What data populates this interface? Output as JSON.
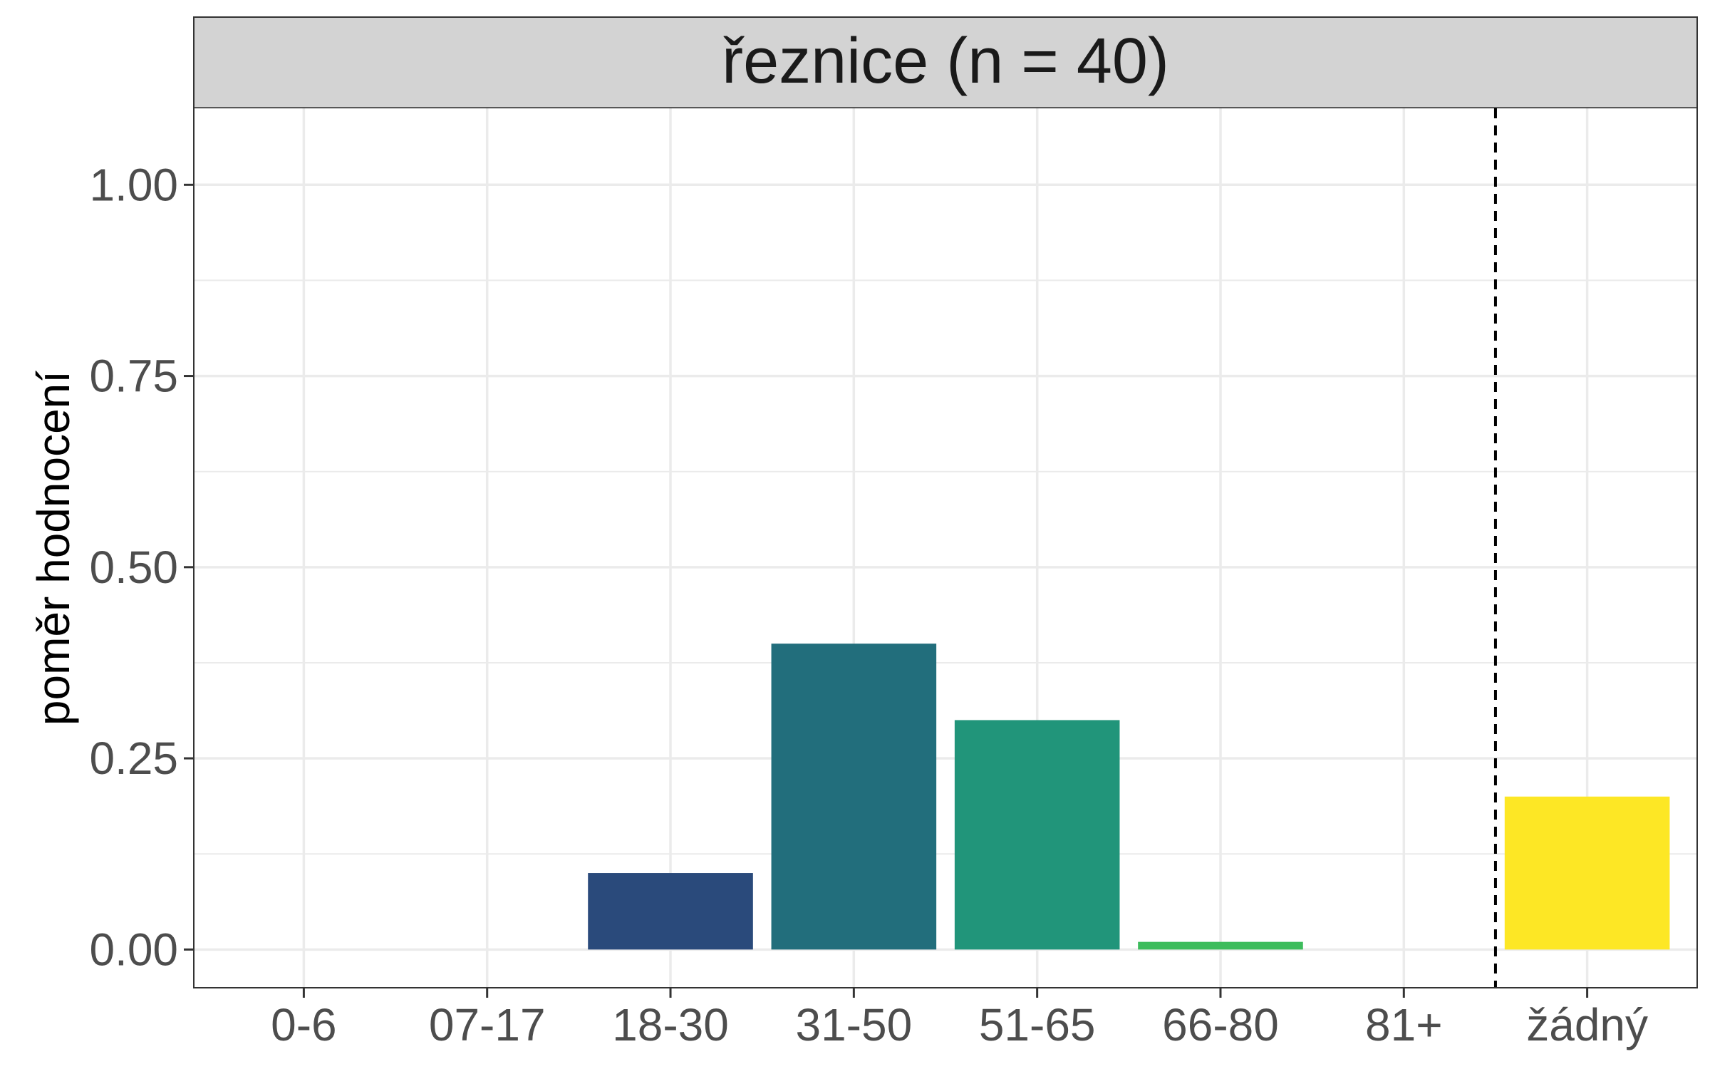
{
  "chart_data": {
    "type": "bar",
    "facet_title": "řeznice (n = 40)",
    "ylabel": "poměr hodnocení",
    "xlabel": "",
    "categories": [
      "0-6",
      "07-17",
      "18-30",
      "31-50",
      "51-65",
      "66-80",
      "81+",
      "žádný"
    ],
    "values": [
      0,
      0,
      0.1,
      0.4,
      0.3,
      0.01,
      0,
      0.2
    ],
    "colors": [
      "#440154",
      "#46327e",
      "#2a4a7b",
      "#226e7c",
      "#21957a",
      "#3dbc5c",
      "#8fd744",
      "#fde725"
    ],
    "ylim": [
      -0.05,
      1.1
    ],
    "yticks": [
      0,
      0.25,
      0.5,
      0.75,
      1
    ],
    "ytick_labels": [
      "0.00",
      "0.25",
      "0.50",
      "0.75",
      "1.00"
    ],
    "separator_after_category": "81+",
    "grid": true
  }
}
